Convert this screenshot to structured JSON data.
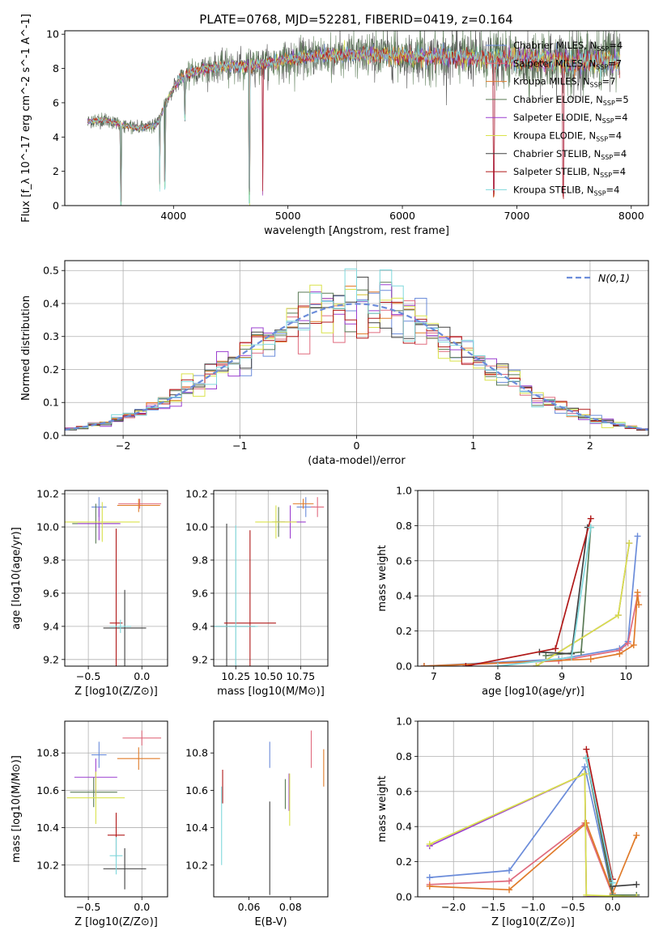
{
  "page_title": "PLATE=0768, MJD=52281, FIBERID=0419, z=0.164",
  "colors": {
    "Chabrier MILES": "#6b8cda",
    "Salpeter MILES": "#e06b7e",
    "Kroupa MILES": "#e07b2a",
    "Chabrier ELODIE": "#5a7a55",
    "Salpeter ELODIE": "#9b3fcf",
    "Kroupa ELODIE": "#d9e24a",
    "Chabrier STELIB": "#404040",
    "Salpeter STELIB": "#b01818",
    "Kroupa STELIB": "#7fd8dc",
    "normal_fit": "#6b8cda",
    "grid": "#b0b0b0"
  },
  "chart_data": [
    {
      "id": "spectrum",
      "type": "line",
      "title": "PLATE=0768, MJD=52281, FIBERID=0419, z=0.164",
      "xlabel": "wavelength [Angstrom, rest frame]",
      "ylabel": "Flux [f_λ 10^-17 erg cm^-2 s^-1 A^-1]",
      "xlim": [
        3050,
        8150
      ],
      "ylim": [
        0,
        10.2
      ],
      "xticks": [
        "4000",
        "5000",
        "6000",
        "7000",
        "8000"
      ],
      "yticks": [
        "0",
        "2",
        "4",
        "6",
        "8",
        "10"
      ],
      "grid": false,
      "legend_position": "top-right",
      "series": [
        {
          "name": "Chabrier MILES, N_SSP=4",
          "label": "Chabrier MILES",
          "nssp": "4"
        },
        {
          "name": "Salpeter MILES, N_SSP=7",
          "label": "Salpeter MILES",
          "nssp": "7"
        },
        {
          "name": "Kroupa MILES, N_SSP=7",
          "label": "Kroupa MILES",
          "nssp": "7"
        },
        {
          "name": "Chabrier ELODIE, N_SSP=5",
          "label": "Chabrier ELODIE",
          "nssp": "5"
        },
        {
          "name": "Salpeter ELODIE, N_SSP=4",
          "label": "Salpeter ELODIE",
          "nssp": "4"
        },
        {
          "name": "Kroupa ELODIE, N_SSP=4",
          "label": "Kroupa ELODIE",
          "nssp": "4"
        },
        {
          "name": "Chabrier STELIB, N_SSP=4",
          "label": "Chabrier STELIB",
          "nssp": "4"
        },
        {
          "name": "Salpeter STELIB, N_SSP=4",
          "label": "Salpeter STELIB",
          "nssp": "4"
        },
        {
          "name": "Kroupa STELIB, N_SSP=4",
          "label": "Kroupa STELIB",
          "nssp": "4"
        }
      ],
      "continuum": {
        "x": [
          3250,
          3400,
          3550,
          3700,
          3850,
          3950,
          4050,
          4200,
          4400,
          4600,
          4800,
          5000,
          5200,
          5400,
          5600,
          5800,
          6000,
          6200,
          6400,
          6600,
          6800,
          7000,
          7200,
          7400,
          7600,
          7800,
          7900
        ],
        "y": [
          4.9,
          5.0,
          4.7,
          4.5,
          4.7,
          6.2,
          7.4,
          7.9,
          8.1,
          8.1,
          8.3,
          8.5,
          8.7,
          8.8,
          8.8,
          8.8,
          8.7,
          8.7,
          8.7,
          8.6,
          8.6,
          8.5,
          8.5,
          8.4,
          8.4,
          8.4,
          8.4
        ]
      },
      "absorption_lines": [
        {
          "x": 3540,
          "depth": 4.9
        },
        {
          "x": 3880,
          "depth": 4.3
        },
        {
          "x": 3925,
          "depth": 4.8
        },
        {
          "x": 4100,
          "depth": 2.5
        },
        {
          "x": 4665,
          "depth": 8.0
        },
        {
          "x": 4780,
          "depth": 8.4
        },
        {
          "x": 6800,
          "depth": 8.6
        },
        {
          "x": 7405,
          "depth": 8.5
        }
      ]
    },
    {
      "id": "residuals",
      "type": "line",
      "xlabel": "(data-model)/error",
      "ylabel": "Normed distribution",
      "xlim": [
        -2.5,
        2.5
      ],
      "ylim": [
        0,
        0.53
      ],
      "xticks": [
        "−2",
        "−1",
        "0",
        "1",
        "2"
      ],
      "yticks": [
        "0.0",
        "0.1",
        "0.2",
        "0.3",
        "0.4",
        "0.5"
      ],
      "grid": true,
      "legend_position": "top-right",
      "legend_label": "N(0,1)",
      "bin_width": 0.1,
      "n_series": 9
    },
    {
      "id": "age_vs_Z",
      "type": "scatter",
      "xlabel": "Z [log10(Z/Z⊙)]",
      "ylabel": "age [log10(age/yr)]",
      "xlim": [
        -0.72,
        0.24
      ],
      "ylim": [
        9.16,
        10.22
      ],
      "xticks": [
        "−0.5",
        "0.0"
      ],
      "yticks": [
        "9.2",
        "9.4",
        "9.6",
        "9.8",
        "10.0",
        "10.2"
      ],
      "grid": true,
      "points": [
        {
          "series": "Chabrier MILES",
          "x": -0.4,
          "y": 10.12,
          "xerr": 0.07,
          "yerr": 0.06
        },
        {
          "series": "Salpeter MILES",
          "x": -0.02,
          "y": 10.14,
          "xerr": 0.2,
          "yerr": 0.03
        },
        {
          "series": "Kroupa MILES",
          "x": -0.03,
          "y": 10.13,
          "xerr": 0.2,
          "yerr": 0.04
        },
        {
          "series": "Chabrier ELODIE",
          "x": -0.43,
          "y": 10.02,
          "xerr": 0.22,
          "yerr": 0.12
        },
        {
          "series": "Salpeter ELODIE",
          "x": -0.4,
          "y": 10.02,
          "xerr": 0.2,
          "yerr": 0.1
        },
        {
          "series": "Kroupa ELODIE",
          "x": -0.37,
          "y": 10.03,
          "xerr": 0.35,
          "yerr": 0.12
        },
        {
          "series": "Chabrier STELIB",
          "x": -0.16,
          "y": 9.39,
          "xerr": 0.2,
          "yerr": 0.23
        },
        {
          "series": "Salpeter STELIB",
          "x": -0.24,
          "y": 9.42,
          "xerr": 0.06,
          "yerr": 0.57
        },
        {
          "series": "Kroupa STELIB",
          "x": -0.2,
          "y": 9.4,
          "xerr": 0.1,
          "yerr": 0.04
        }
      ]
    },
    {
      "id": "age_vs_mass",
      "type": "scatter",
      "xlabel": "mass [log10(M/M⊙)]",
      "ylabel": "",
      "xlim": [
        10.08,
        10.96
      ],
      "ylim": [
        9.16,
        10.22
      ],
      "xticks": [
        "10.25",
        "10.50",
        "10.75"
      ],
      "yticks": [
        "9.2",
        "9.4",
        "9.6",
        "9.8",
        "10.0",
        "10.2"
      ],
      "grid": true,
      "points": [
        {
          "series": "Chabrier MILES",
          "x": 10.79,
          "y": 10.12,
          "xerr": 0.07,
          "yerr": 0.06
        },
        {
          "series": "Salpeter MILES",
          "x": 10.88,
          "y": 10.12,
          "xerr": 0.05,
          "yerr": 0.06
        },
        {
          "series": "Kroupa MILES",
          "x": 10.77,
          "y": 10.14,
          "xerr": 0.08,
          "yerr": 0.03
        },
        {
          "series": "Chabrier ELODIE",
          "x": 10.58,
          "y": 10.03,
          "xerr": 0.05,
          "yerr": 0.09
        },
        {
          "series": "Salpeter ELODIE",
          "x": 10.67,
          "y": 10.03,
          "xerr": 0.12,
          "yerr": 0.1
        },
        {
          "series": "Kroupa ELODIE",
          "x": 10.56,
          "y": 10.03,
          "xerr": 0.16,
          "yerr": 0.1
        },
        {
          "series": "Chabrier STELIB",
          "x": 10.18,
          "y": 9.4,
          "xerr": 0.22,
          "yerr": 0.62
        },
        {
          "series": "Salpeter STELIB",
          "x": 10.36,
          "y": 9.42,
          "xerr": 0.2,
          "yerr": 0.56
        },
        {
          "series": "Kroupa STELIB",
          "x": 10.25,
          "y": 9.4,
          "xerr": 0.17,
          "yerr": 0.61
        }
      ]
    },
    {
      "id": "weights_vs_age",
      "type": "line",
      "xlabel": "age [log10(age/yr)]",
      "ylabel": "mass weight",
      "xlim": [
        6.75,
        10.35
      ],
      "ylim": [
        0,
        1.0
      ],
      "xticks": [
        "7",
        "8",
        "9",
        "10"
      ],
      "yticks": [
        "0.0",
        "0.2",
        "0.4",
        "0.6",
        "0.8",
        "1.0"
      ],
      "grid": true,
      "series": [
        {
          "series": "Chabrier MILES",
          "x": [
            6.85,
            8.95,
            9.9,
            10.03,
            10.18
          ],
          "y": [
            0.0,
            0.04,
            0.1,
            0.14,
            0.74
          ]
        },
        {
          "series": "Salpeter MILES",
          "x": [
            6.85,
            8.95,
            9.9,
            10.03,
            10.18
          ],
          "y": [
            0.0,
            0.03,
            0.09,
            0.13,
            0.4
          ]
        },
        {
          "series": "Kroupa MILES",
          "x": [
            6.85,
            9.45,
            9.9,
            10.12,
            10.18,
            10.2
          ],
          "y": [
            0.0,
            0.04,
            0.07,
            0.12,
            0.42,
            0.35
          ]
        },
        {
          "series": "Chabrier ELODIE",
          "x": [
            8.75,
            9.3,
            9.45
          ],
          "y": [
            0.06,
            0.08,
            0.79
          ]
        },
        {
          "series": "Salpeter ELODIE",
          "x": [
            8.6,
            9.88,
            10.05
          ],
          "y": [
            0.0,
            0.29,
            0.7
          ]
        },
        {
          "series": "Kroupa ELODIE",
          "x": [
            8.6,
            9.88,
            10.05
          ],
          "y": [
            0.0,
            0.29,
            0.7
          ]
        },
        {
          "series": "Chabrier STELIB",
          "x": [
            8.65,
            9.15,
            9.4
          ],
          "y": [
            0.08,
            0.07,
            0.79
          ]
        },
        {
          "series": "Salpeter STELIB",
          "x": [
            7.5,
            8.9,
            9.45
          ],
          "y": [
            0.0,
            0.1,
            0.84
          ]
        },
        {
          "series": "Kroupa STELIB",
          "x": [
            8.0,
            9.15,
            9.45
          ],
          "y": [
            0.0,
            0.05,
            0.79
          ]
        }
      ]
    },
    {
      "id": "mass_vs_Z",
      "type": "scatter",
      "xlabel": "Z [log10(Z/Z⊙)]",
      "ylabel": "mass [log10(M/M⊙)]",
      "xlim": [
        -0.72,
        0.24
      ],
      "ylim": [
        10.03,
        10.97
      ],
      "xticks": [
        "−0.5",
        "0.0"
      ],
      "yticks": [
        "10.2",
        "10.4",
        "10.6",
        "10.8"
      ],
      "grid": true,
      "points": [
        {
          "series": "Chabrier MILES",
          "x": -0.4,
          "y": 10.79,
          "xerr": 0.07,
          "yerr": 0.07
        },
        {
          "series": "Salpeter MILES",
          "x": 0.0,
          "y": 10.88,
          "xerr": 0.18,
          "yerr": 0.04
        },
        {
          "series": "Kroupa MILES",
          "x": -0.03,
          "y": 10.77,
          "xerr": 0.2,
          "yerr": 0.06
        },
        {
          "series": "Chabrier ELODIE",
          "x": -0.45,
          "y": 10.59,
          "xerr": 0.22,
          "yerr": 0.08
        },
        {
          "series": "Salpeter ELODIE",
          "x": -0.43,
          "y": 10.67,
          "xerr": 0.2,
          "yerr": 0.1
        },
        {
          "series": "Kroupa ELODIE",
          "x": -0.43,
          "y": 10.56,
          "xerr": 0.27,
          "yerr": 0.14
        },
        {
          "series": "Chabrier STELIB",
          "x": -0.16,
          "y": 10.18,
          "xerr": 0.2,
          "yerr": 0.11
        },
        {
          "series": "Salpeter STELIB",
          "x": -0.24,
          "y": 10.36,
          "xerr": 0.08,
          "yerr": 0.12
        },
        {
          "series": "Kroupa STELIB",
          "x": -0.24,
          "y": 10.25,
          "xerr": 0.06,
          "yerr": 0.1
        }
      ]
    },
    {
      "id": "mass_vs_ebv",
      "type": "scatter",
      "xlabel": "E(B-V)",
      "ylabel": "",
      "xlim": [
        0.043,
        0.098
      ],
      "ylim": [
        10.03,
        10.97
      ],
      "xticks": [
        "0.06",
        "0.08"
      ],
      "yticks": [
        "10.2",
        "10.4",
        "10.6",
        "10.8"
      ],
      "grid": false,
      "points": [
        {
          "series": "Chabrier MILES",
          "x": 0.07,
          "y": 10.79,
          "xerr": 0.0,
          "yerr": 0.07
        },
        {
          "series": "Salpeter MILES",
          "x": 0.09,
          "y": 10.82,
          "xerr": 0.0,
          "yerr": 0.1
        },
        {
          "series": "Kroupa MILES",
          "x": 0.096,
          "y": 10.72,
          "xerr": 0.0,
          "yerr": 0.1
        },
        {
          "series": "Chabrier ELODIE",
          "x": 0.0775,
          "y": 10.58,
          "xerr": 0.0,
          "yerr": 0.08
        },
        {
          "series": "Salpeter ELODIE",
          "x": 0.0793,
          "y": 10.59,
          "xerr": 0.0,
          "yerr": 0.1
        },
        {
          "series": "Kroupa ELODIE",
          "x": 0.0796,
          "y": 10.55,
          "xerr": 0.0,
          "yerr": 0.14
        },
        {
          "series": "Chabrier STELIB",
          "x": 0.07,
          "y": 10.29,
          "xerr": 0.0,
          "yerr": 0.25
        },
        {
          "series": "Salpeter STELIB",
          "x": 0.0473,
          "y": 10.62,
          "xerr": 0.0,
          "yerr": 0.09
        },
        {
          "series": "Kroupa STELIB",
          "x": 0.0468,
          "y": 10.41,
          "xerr": 0.0,
          "yerr": 0.21
        }
      ]
    },
    {
      "id": "weights_vs_Z",
      "type": "line",
      "xlabel": "Z [log10(Z/Z⊙)]",
      "ylabel": "mass weight",
      "xlim": [
        -2.45,
        0.45
      ],
      "ylim": [
        0,
        1.0
      ],
      "xticks": [
        "−2.0",
        "−1.5",
        "−1.0",
        "−0.5",
        "0.0"
      ],
      "yticks": [
        "0.0",
        "0.2",
        "0.4",
        "0.6",
        "0.8",
        "1.0"
      ],
      "grid": true,
      "series": [
        {
          "series": "Chabrier MILES",
          "x": [
            -2.3,
            -1.3,
            -0.35,
            0.0
          ],
          "y": [
            0.11,
            0.15,
            0.74,
            0.01
          ]
        },
        {
          "series": "Salpeter MILES",
          "x": [
            -2.3,
            -1.3,
            -0.35,
            0.0
          ],
          "y": [
            0.07,
            0.09,
            0.42,
            0.01
          ]
        },
        {
          "series": "Kroupa MILES",
          "x": [
            -2.3,
            -1.3,
            -0.33,
            0.0,
            0.3
          ],
          "y": [
            0.06,
            0.04,
            0.42,
            0.02,
            0.35
          ]
        },
        {
          "series": "Chabrier ELODIE",
          "x": [
            -0.33,
            0.0,
            0.3
          ],
          "y": [
            0.79,
            0.01,
            0.01
          ]
        },
        {
          "series": "Salpeter ELODIE",
          "x": [
            -2.3,
            -0.35,
            -0.33,
            0.3
          ],
          "y": [
            0.29,
            0.7,
            0.0,
            0.0
          ]
        },
        {
          "series": "Kroupa ELODIE",
          "x": [
            -2.3,
            -0.35,
            -0.33,
            0.3
          ],
          "y": [
            0.3,
            0.7,
            0.01,
            0.0
          ]
        },
        {
          "series": "Chabrier STELIB",
          "x": [
            -0.33,
            0.0,
            0.3
          ],
          "y": [
            0.79,
            0.06,
            0.07
          ]
        },
        {
          "series": "Salpeter STELIB",
          "x": [
            -0.33,
            0.0
          ],
          "y": [
            0.84,
            0.1
          ]
        },
        {
          "series": "Kroupa STELIB",
          "x": [
            -0.33,
            0.0
          ],
          "y": [
            0.79,
            0.08
          ]
        }
      ]
    }
  ]
}
